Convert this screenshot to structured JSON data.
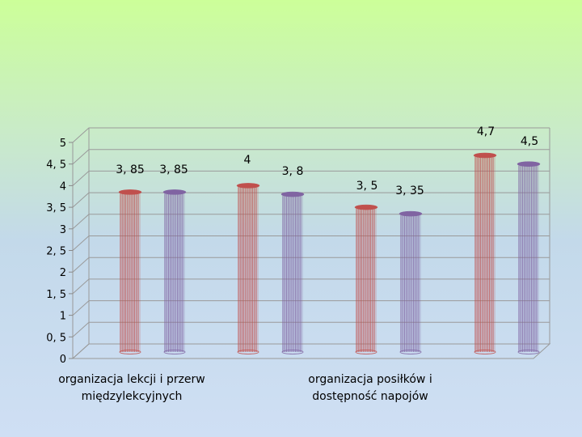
{
  "chart_data": {
    "type": "bar",
    "categories": [
      "organizacja lekcji i przerw międzylekcyjnych",
      "",
      "organizacja posiłków i dostępność napojów"
    ],
    "series": [
      {
        "values": [
          3.85,
          4,
          3.5
        ],
        "color": "#c0504d"
      },
      {
        "values": [
          3.85,
          3.8,
          3.35
        ],
        "color": "#8064a2"
      }
    ],
    "value_labels": [
      [
        "3, 85",
        "4",
        "3, 5"
      ],
      [
        "3, 85",
        "3, 8",
        "3, 35"
      ]
    ],
    "extra_bar": {
      "series1_value": 4.7,
      "series1_label": "4,7",
      "series2_value": 4.5,
      "series2_label": "4,5"
    },
    "y_ticks": [
      "0",
      "0, 5",
      "1",
      "1, 5",
      "2",
      "2, 5",
      "3",
      "3, 5",
      "4",
      "4, 5",
      "5"
    ],
    "ylim": [
      0,
      5
    ],
    "grid": true,
    "legend": "none",
    "title": "",
    "xlabel": "",
    "ylabel": ""
  }
}
